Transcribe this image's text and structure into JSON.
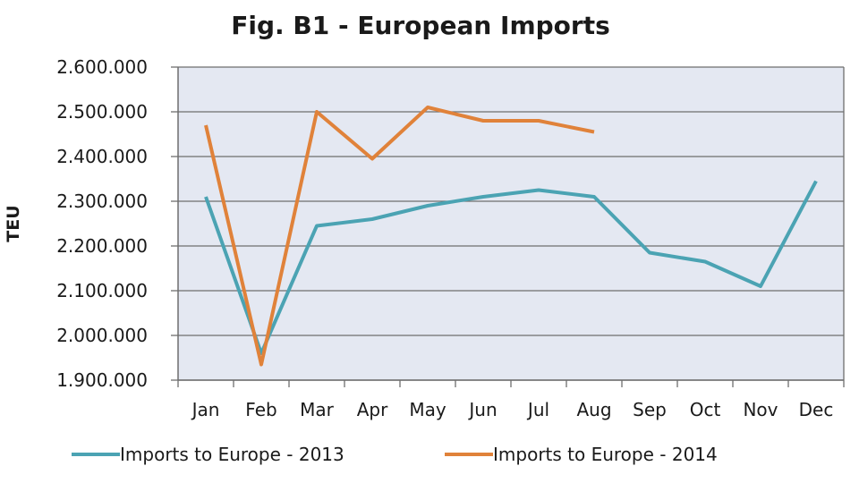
{
  "chart_data": {
    "type": "line",
    "title": "Fig. B1 - European Imports",
    "ylabel": "TEU",
    "xlabel": "",
    "categories": [
      "Jan",
      "Feb",
      "Mar",
      "Apr",
      "May",
      "Jun",
      "Jul",
      "Aug",
      "Sep",
      "Oct",
      "Nov",
      "Dec"
    ],
    "ylim": [
      1900000,
      2600000
    ],
    "yticks": [
      1900000,
      2000000,
      2100000,
      2200000,
      2300000,
      2400000,
      2500000,
      2600000
    ],
    "ytick_labels": [
      "1.900.000",
      "2.000.000",
      "2.100.000",
      "2.200.000",
      "2.300.000",
      "2.400.000",
      "2.500.000",
      "2.600.000"
    ],
    "grid": true,
    "legend_position": "bottom",
    "series": [
      {
        "name": "Imports to Europe - 2013",
        "color": "#4BA3B3",
        "values": [
          2310000,
          1960000,
          2245000,
          2260000,
          2290000,
          2310000,
          2325000,
          2310000,
          2185000,
          2165000,
          2110000,
          2345000
        ]
      },
      {
        "name": "Imports to Europe - 2014",
        "color": "#E0823A",
        "values": [
          2470000,
          1935000,
          2500000,
          2395000,
          2510000,
          2480000,
          2480000,
          2455000,
          null,
          null,
          null,
          null
        ]
      }
    ]
  },
  "colors": {
    "plot_background": "#E4E8F2",
    "gridline": "#6E6E6E",
    "axis": "#6E6E6E"
  }
}
